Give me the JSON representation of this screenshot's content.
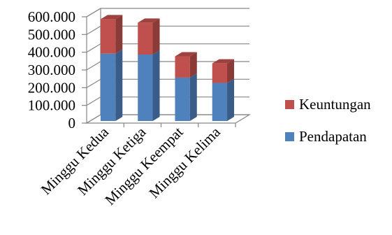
{
  "chart_data": {
    "type": "bar",
    "stacked": true,
    "three_d": true,
    "categories": [
      "Minggu Kedua",
      "Minggu Ketiga",
      "Minggu Keempat",
      "Minggu Kelima"
    ],
    "series": [
      {
        "name": "Pendapatan",
        "values": [
          380000,
          375000,
          245000,
          215000
        ],
        "color": "#4f81bd"
      },
      {
        "name": "Keuntungan",
        "values": [
          195000,
          180000,
          120000,
          110000
        ],
        "color": "#c0504d"
      }
    ],
    "y_tick_labels": [
      "0",
      "100.000",
      "200.000",
      "300.000",
      "400.000",
      "500.000",
      "600.000"
    ],
    "ylim": [
      0,
      600000
    ],
    "grid": true,
    "legend_position": "right"
  }
}
